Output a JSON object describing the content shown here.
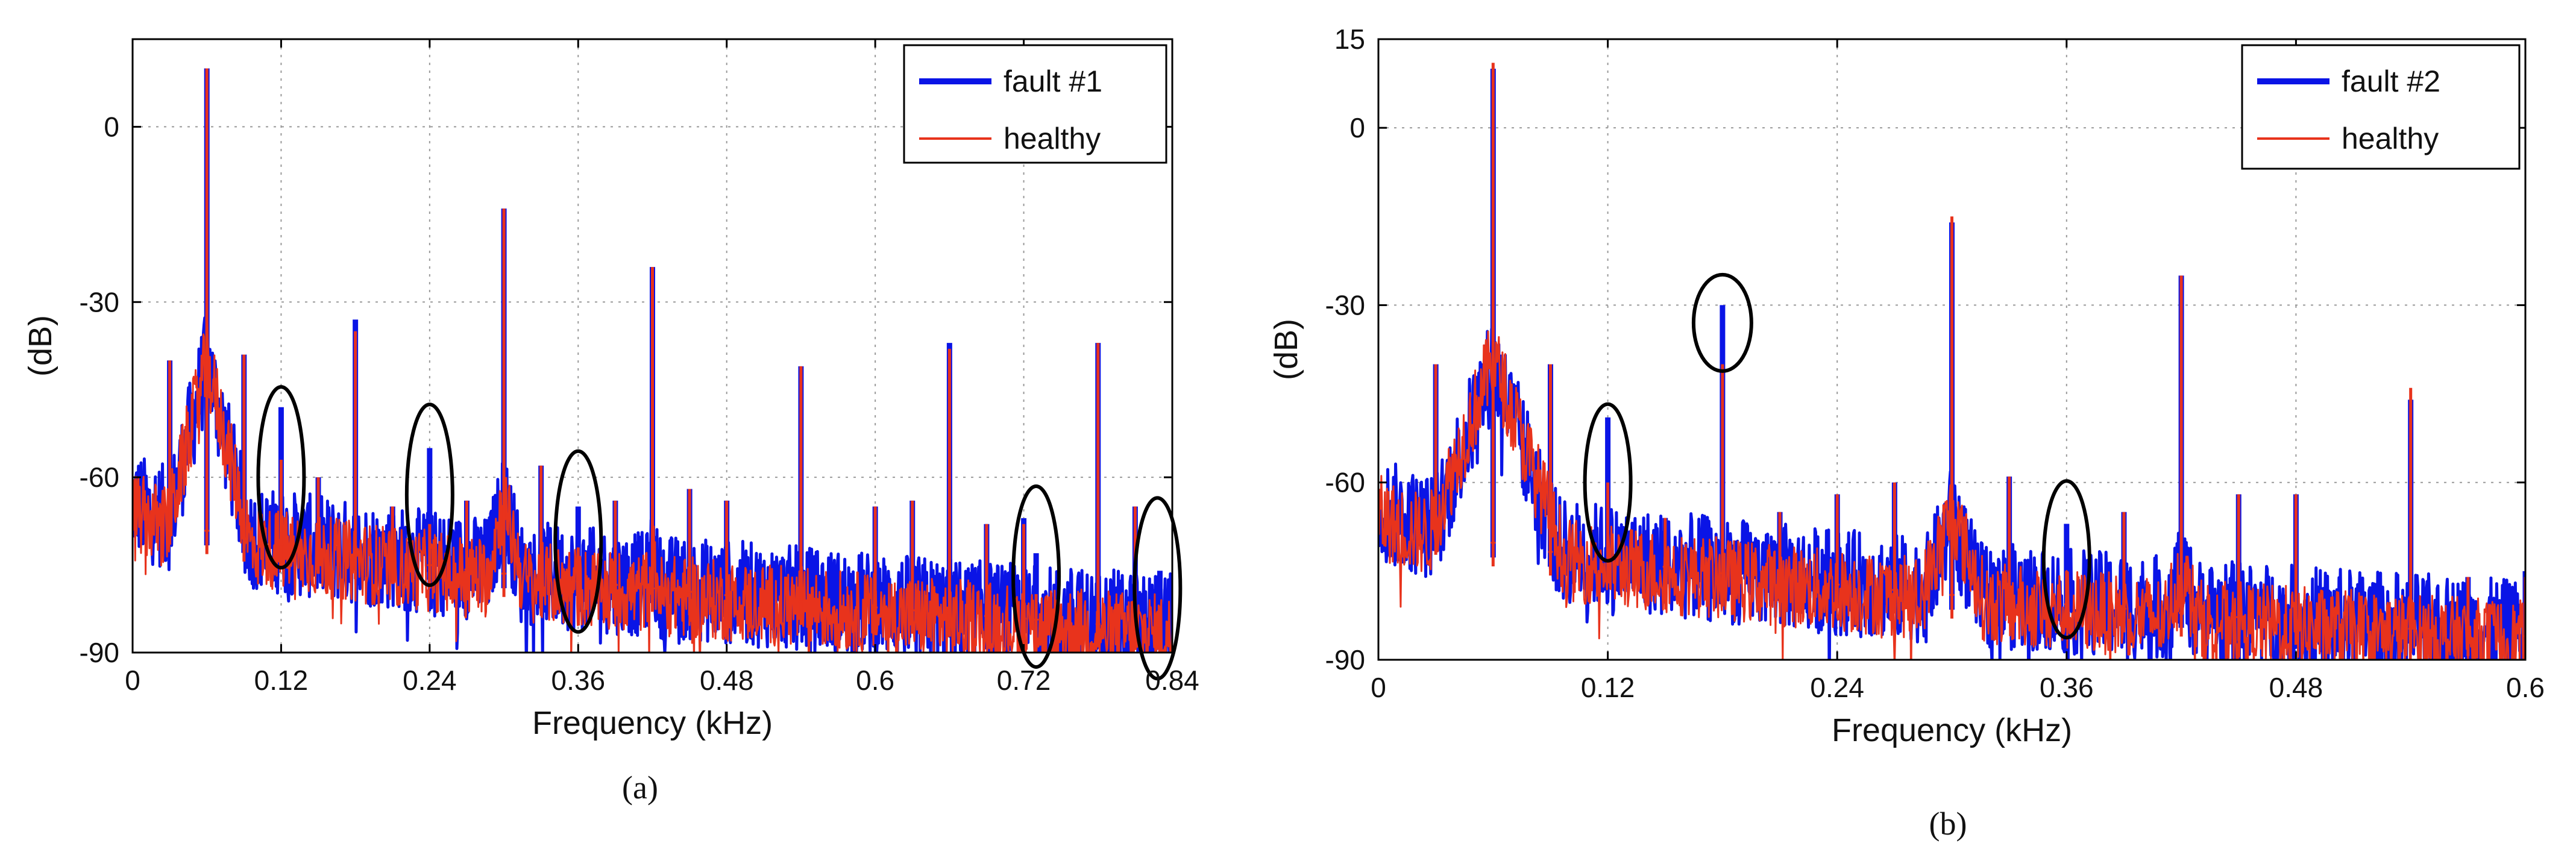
{
  "chart_data": [
    {
      "panel": "(a)",
      "type": "line",
      "xlabel": "Frequency (kHz)",
      "ylabel": "(dB)",
      "xlim": [
        0,
        0.84
      ],
      "ylim": [
        -90,
        15
      ],
      "xticks": [
        0,
        0.12,
        0.24,
        0.36,
        0.48,
        0.6,
        0.72,
        0.84
      ],
      "xtick_labels": [
        "0",
        "0.12",
        "0.24",
        "0.36",
        "0.48",
        "0.6",
        "0.72",
        "0.84"
      ],
      "yticks": [
        -90,
        -60,
        -30,
        0
      ],
      "ytick_labels": [
        "-90",
        "-60",
        "-30",
        "0"
      ],
      "grid": true,
      "legend_position": "top-right",
      "series": [
        {
          "name": "fault #1",
          "color": "#0a14e6",
          "peaks": [
            {
              "x": 0.03,
              "y": -40
            },
            {
              "x": 0.06,
              "y": 10
            },
            {
              "x": 0.09,
              "y": -39
            },
            {
              "x": 0.12,
              "y": -48
            },
            {
              "x": 0.15,
              "y": -60
            },
            {
              "x": 0.18,
              "y": -33
            },
            {
              "x": 0.21,
              "y": -65
            },
            {
              "x": 0.24,
              "y": -55
            },
            {
              "x": 0.27,
              "y": -64
            },
            {
              "x": 0.3,
              "y": -14
            },
            {
              "x": 0.33,
              "y": -58
            },
            {
              "x": 0.36,
              "y": -65
            },
            {
              "x": 0.39,
              "y": -64
            },
            {
              "x": 0.42,
              "y": -24
            },
            {
              "x": 0.45,
              "y": -62
            },
            {
              "x": 0.48,
              "y": -64
            },
            {
              "x": 0.54,
              "y": -41
            },
            {
              "x": 0.6,
              "y": -65
            },
            {
              "x": 0.63,
              "y": -64
            },
            {
              "x": 0.66,
              "y": -37
            },
            {
              "x": 0.69,
              "y": -68
            },
            {
              "x": 0.72,
              "y": -67
            },
            {
              "x": 0.73,
              "y": -73
            },
            {
              "x": 0.78,
              "y": -37
            },
            {
              "x": 0.81,
              "y": -65
            },
            {
              "x": 0.83,
              "y": -76
            }
          ]
        },
        {
          "name": "healthy",
          "color": "#e8331c",
          "peaks": [
            {
              "x": 0.03,
              "y": -40
            },
            {
              "x": 0.06,
              "y": 10
            },
            {
              "x": 0.09,
              "y": -39
            },
            {
              "x": 0.12,
              "y": -57
            },
            {
              "x": 0.15,
              "y": -60
            },
            {
              "x": 0.18,
              "y": -35
            },
            {
              "x": 0.21,
              "y": -65
            },
            {
              "x": 0.24,
              "y": -68
            },
            {
              "x": 0.27,
              "y": -64
            },
            {
              "x": 0.3,
              "y": -14
            },
            {
              "x": 0.33,
              "y": -58
            },
            {
              "x": 0.36,
              "y": -72
            },
            {
              "x": 0.39,
              "y": -64
            },
            {
              "x": 0.42,
              "y": -24
            },
            {
              "x": 0.45,
              "y": -62
            },
            {
              "x": 0.48,
              "y": -64
            },
            {
              "x": 0.54,
              "y": -41
            },
            {
              "x": 0.6,
              "y": -65
            },
            {
              "x": 0.63,
              "y": -64
            },
            {
              "x": 0.66,
              "y": -38
            },
            {
              "x": 0.69,
              "y": -68
            },
            {
              "x": 0.72,
              "y": -68
            },
            {
              "x": 0.73,
              "y": -80
            },
            {
              "x": 0.78,
              "y": -37
            },
            {
              "x": 0.81,
              "y": -65
            },
            {
              "x": 0.83,
              "y": -82
            }
          ]
        }
      ],
      "annotations": [
        {
          "type": "ellipse",
          "x": 0.12,
          "y": -60,
          "note": "circled fault harmonic"
        },
        {
          "type": "ellipse",
          "x": 0.24,
          "y": -63,
          "note": "circled fault harmonic"
        },
        {
          "type": "ellipse",
          "x": 0.36,
          "y": -71,
          "note": "circled fault harmonic"
        },
        {
          "type": "ellipse",
          "x": 0.73,
          "y": -77,
          "note": "circled fault harmonic"
        },
        {
          "type": "ellipse",
          "x": 0.828,
          "y": -79,
          "note": "circled fault harmonic"
        }
      ]
    },
    {
      "panel": "(b)",
      "type": "line",
      "xlabel": "Frequency (kHz)",
      "ylabel": "(dB)",
      "xlim": [
        0,
        0.6
      ],
      "ylim": [
        -90,
        15
      ],
      "xticks": [
        0,
        0.12,
        0.24,
        0.36,
        0.48,
        0.6
      ],
      "xtick_labels": [
        "0",
        "0.12",
        "0.24",
        "0.36",
        "0.48",
        "0.6"
      ],
      "yticks": [
        -90,
        -60,
        -30,
        0,
        15
      ],
      "ytick_labels": [
        "-90",
        "-60",
        "-30",
        "0",
        "15"
      ],
      "grid": true,
      "legend_position": "top-right",
      "series": [
        {
          "name": "fault #2",
          "color": "#0a14e6",
          "peaks": [
            {
              "x": 0.03,
              "y": -40
            },
            {
              "x": 0.06,
              "y": 10
            },
            {
              "x": 0.09,
              "y": -40
            },
            {
              "x": 0.12,
              "y": -49
            },
            {
              "x": 0.15,
              "y": -66
            },
            {
              "x": 0.18,
              "y": -30
            },
            {
              "x": 0.21,
              "y": -65
            },
            {
              "x": 0.24,
              "y": -62
            },
            {
              "x": 0.27,
              "y": -60
            },
            {
              "x": 0.3,
              "y": -16
            },
            {
              "x": 0.33,
              "y": -59
            },
            {
              "x": 0.36,
              "y": -67
            },
            {
              "x": 0.39,
              "y": -65
            },
            {
              "x": 0.42,
              "y": -25
            },
            {
              "x": 0.45,
              "y": -62
            },
            {
              "x": 0.48,
              "y": -62
            },
            {
              "x": 0.54,
              "y": -46
            },
            {
              "x": 0.57,
              "y": -76
            },
            {
              "x": 0.6,
              "y": -75
            }
          ]
        },
        {
          "name": "healthy",
          "color": "#e8331c",
          "peaks": [
            {
              "x": 0.03,
              "y": -40
            },
            {
              "x": 0.06,
              "y": 11
            },
            {
              "x": 0.09,
              "y": -40
            },
            {
              "x": 0.12,
              "y": -60
            },
            {
              "x": 0.15,
              "y": -66
            },
            {
              "x": 0.18,
              "y": -40
            },
            {
              "x": 0.21,
              "y": -65
            },
            {
              "x": 0.24,
              "y": -62
            },
            {
              "x": 0.27,
              "y": -60
            },
            {
              "x": 0.3,
              "y": -15
            },
            {
              "x": 0.33,
              "y": -59
            },
            {
              "x": 0.36,
              "y": -75
            },
            {
              "x": 0.39,
              "y": -65
            },
            {
              "x": 0.42,
              "y": -25
            },
            {
              "x": 0.45,
              "y": -62
            },
            {
              "x": 0.48,
              "y": -62
            },
            {
              "x": 0.54,
              "y": -44
            },
            {
              "x": 0.57,
              "y": -76
            },
            {
              "x": 0.6,
              "y": -76
            }
          ]
        }
      ],
      "annotations": [
        {
          "type": "ellipse",
          "x": 0.12,
          "y": -60,
          "note": "circled fault harmonic"
        },
        {
          "type": "ellipse",
          "x": 0.18,
          "y": -33,
          "note": "circled fault harmonic"
        },
        {
          "type": "ellipse",
          "x": 0.36,
          "y": -73,
          "note": "circled fault harmonic"
        }
      ]
    }
  ],
  "captions": [
    "(a)",
    "(b)"
  ],
  "colors": {
    "fault": "#0a14e6",
    "healthy": "#e8331c",
    "grid": "#9a9a9a",
    "axis": "#000000"
  }
}
